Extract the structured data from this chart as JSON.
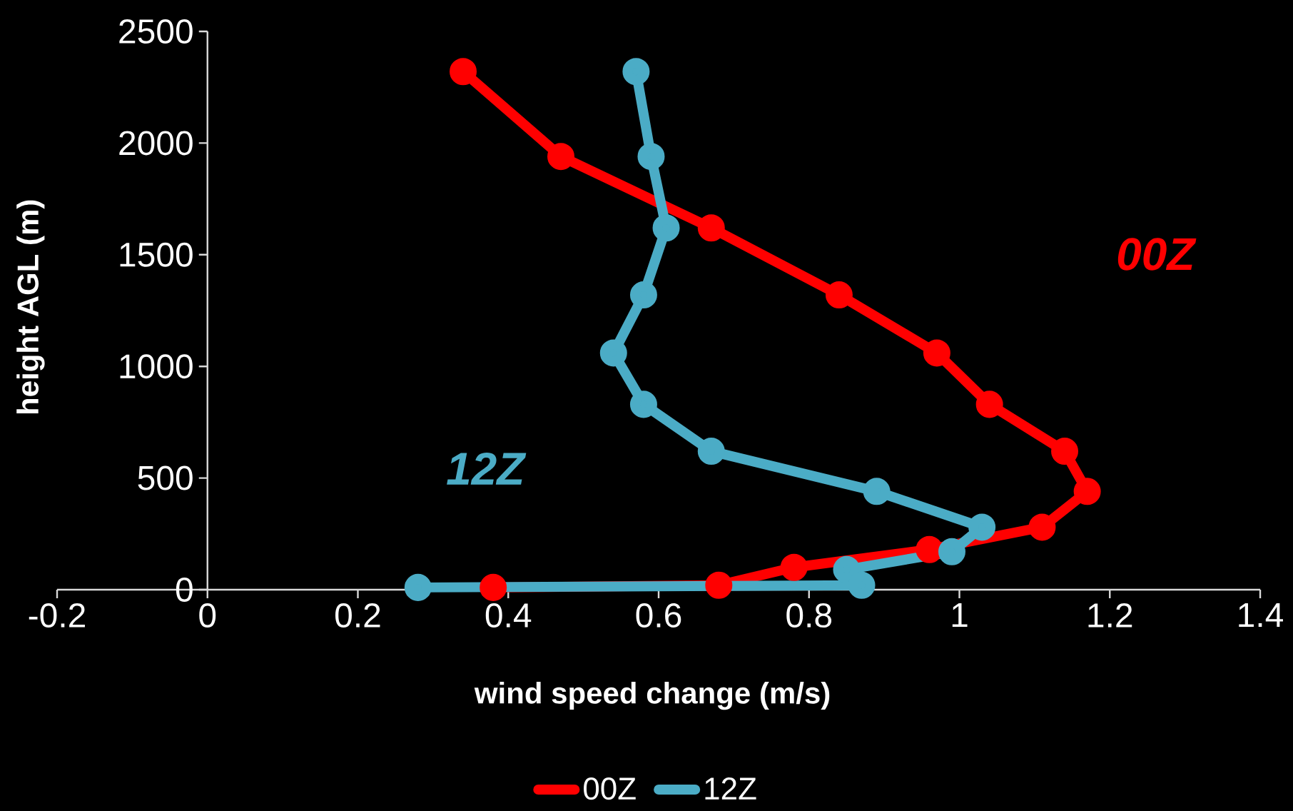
{
  "chart_data": {
    "type": "line",
    "xlabel": "wind speed change (m/s)",
    "ylabel": "height AGL (m)",
    "xlim": [
      -0.2,
      1.4
    ],
    "ylim": [
      0,
      2500
    ],
    "xticks": [
      -0.2,
      0,
      0.2,
      0.4,
      0.6,
      0.8,
      1,
      1.2,
      1.4
    ],
    "yticks": [
      0,
      500,
      1000,
      1500,
      2000,
      2500
    ],
    "series": [
      {
        "name": "00Z",
        "color": "#ff0000",
        "x": [
          0.34,
          0.47,
          0.67,
          0.84,
          0.97,
          1.04,
          1.14,
          1.17,
          1.11,
          0.96,
          0.78,
          0.68,
          0.38
        ],
        "values": [
          2320,
          1940,
          1620,
          1320,
          1060,
          830,
          620,
          440,
          280,
          180,
          100,
          20,
          10
        ]
      },
      {
        "name": "12Z",
        "color": "#4bacc6",
        "x": [
          0.57,
          0.59,
          0.61,
          0.58,
          0.54,
          0.58,
          0.67,
          0.89,
          1.03,
          0.99,
          0.85,
          0.87,
          0.28
        ],
        "values": [
          2320,
          1940,
          1620,
          1320,
          1060,
          830,
          620,
          440,
          280,
          170,
          90,
          20,
          10
        ]
      }
    ],
    "annotations": [
      "00Z",
      "12Z"
    ],
    "grid": false,
    "legend": "bottom",
    "marker": "circle",
    "line_style": "solid"
  }
}
